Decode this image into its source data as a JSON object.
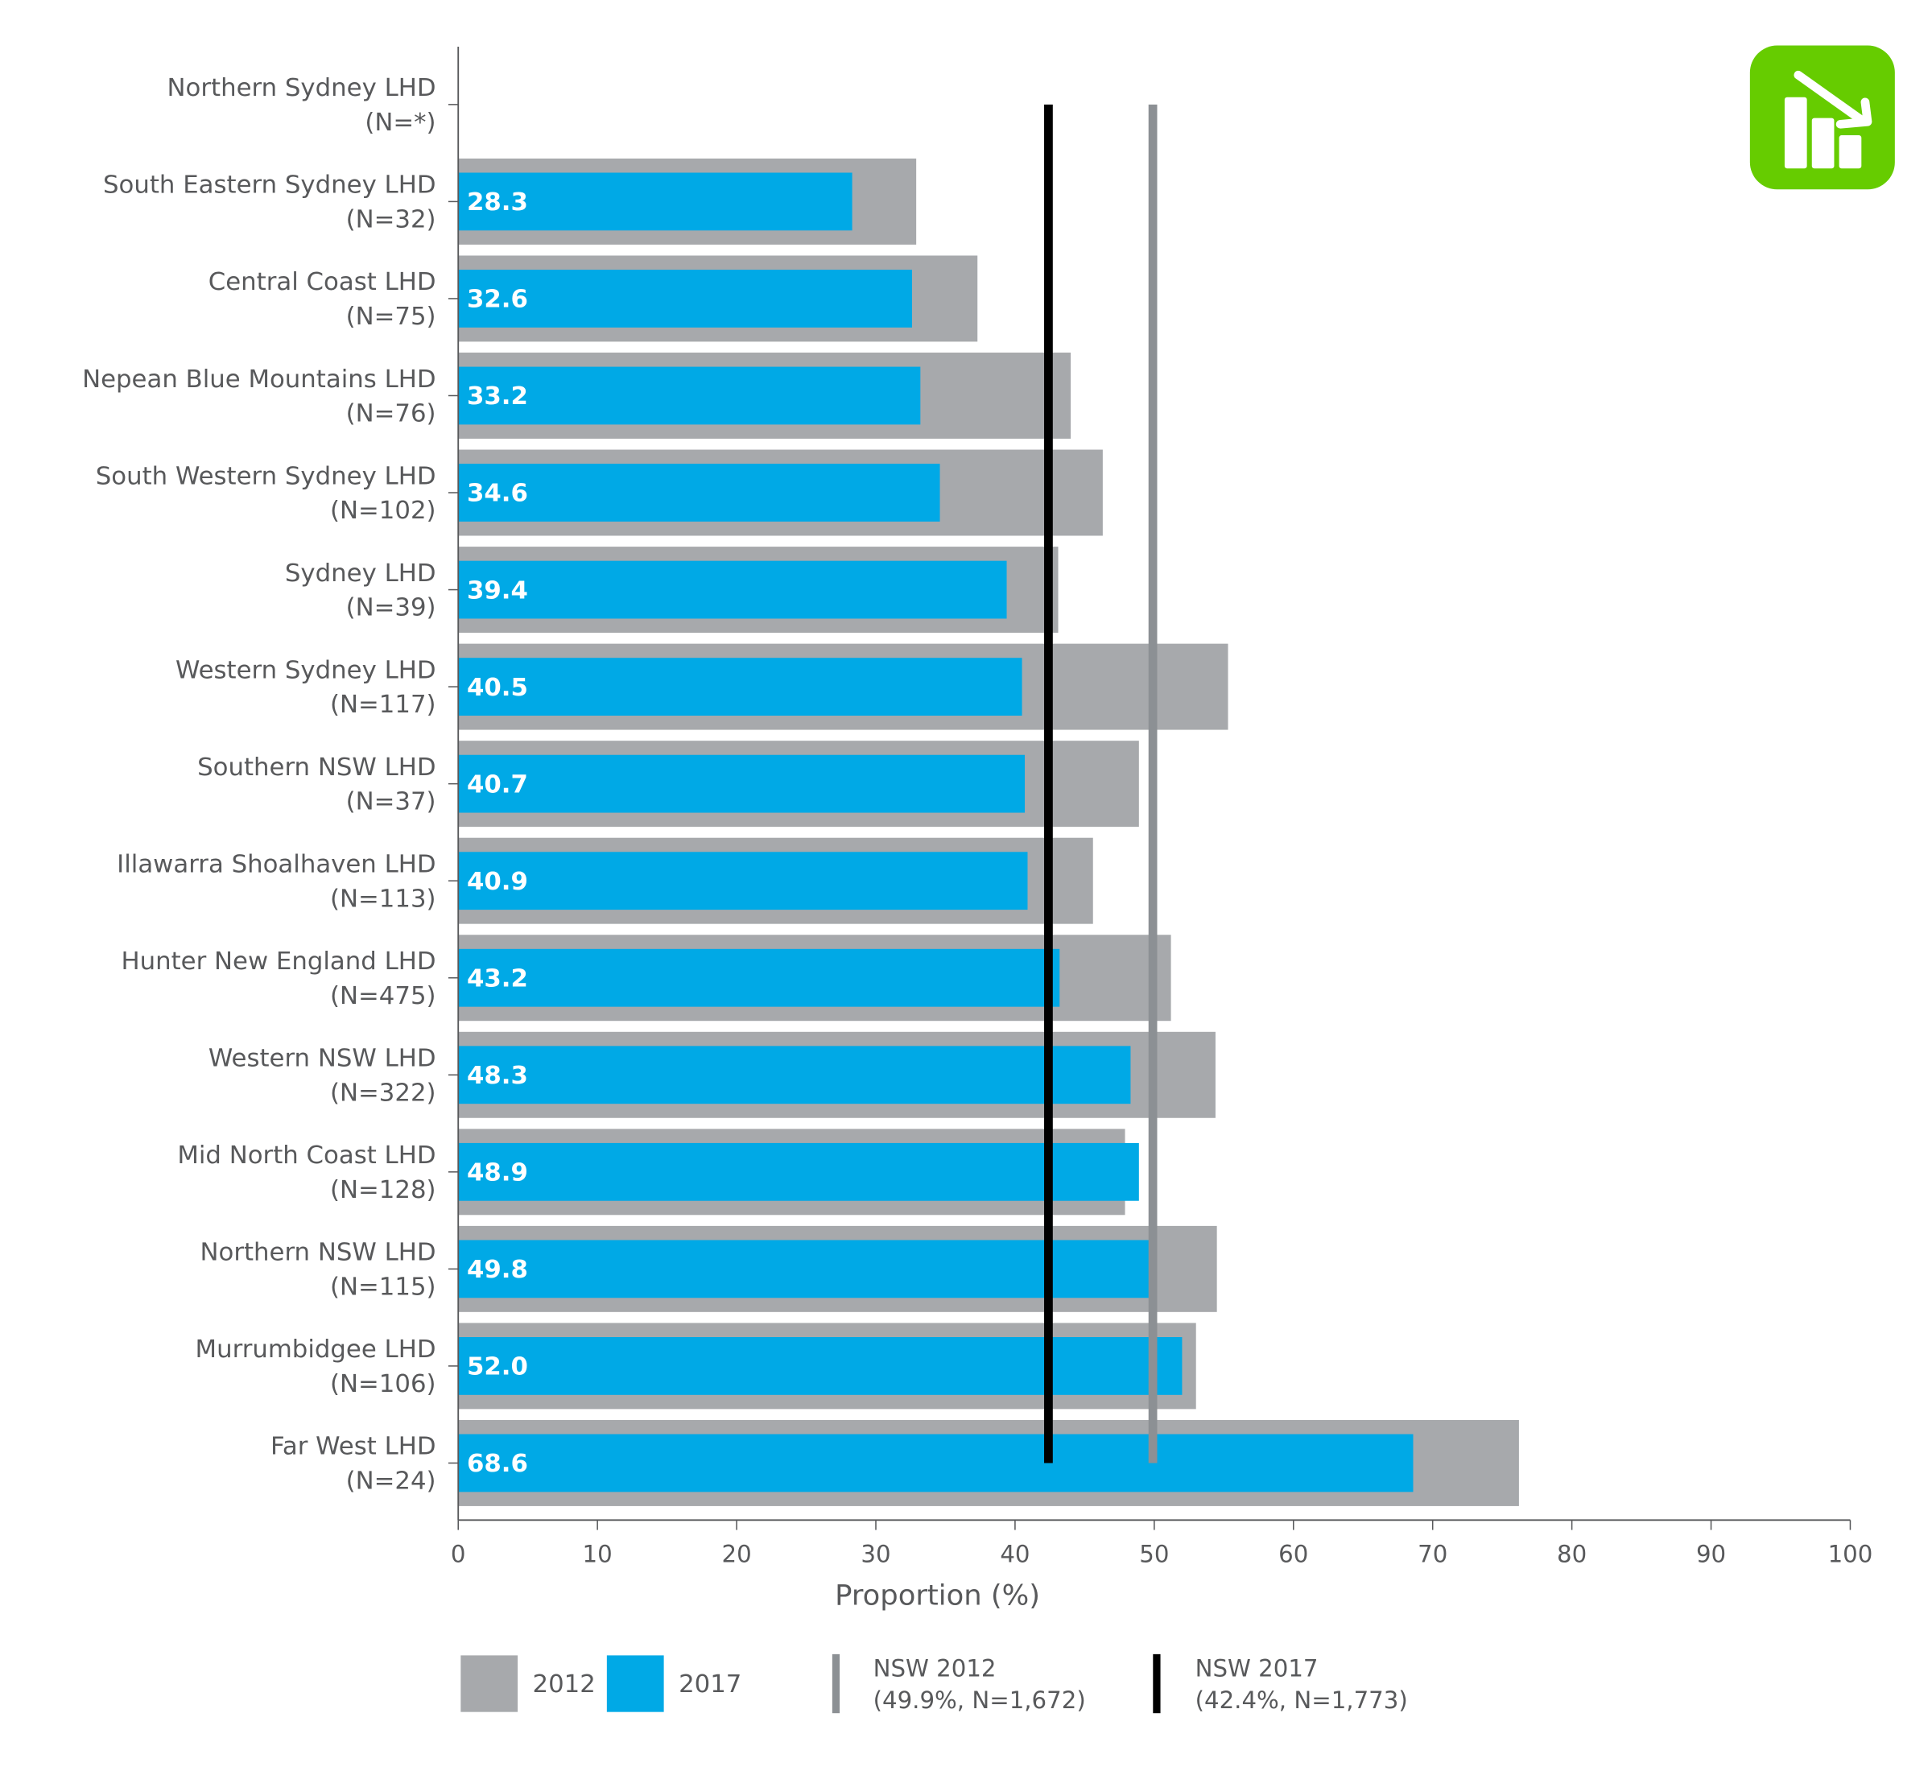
{
  "chart_data": {
    "type": "bar",
    "orientation": "horizontal",
    "xlabel": "Proportion (%)",
    "xlim": [
      0,
      100
    ],
    "xticks": [
      0,
      10,
      20,
      30,
      40,
      50,
      60,
      70,
      80,
      90,
      100
    ],
    "grid": false,
    "categories": [
      [
        "Northern Sydney LHD",
        "(N=*)"
      ],
      [
        "South Eastern Sydney LHD",
        "(N=32)"
      ],
      [
        "Central Coast LHD",
        "(N=75)"
      ],
      [
        "Nepean Blue Mountains LHD",
        "(N=76)"
      ],
      [
        "South Western Sydney LHD",
        "(N=102)"
      ],
      [
        "Sydney LHD",
        "(N=39)"
      ],
      [
        "Western Sydney LHD",
        "(N=117)"
      ],
      [
        "Southern NSW LHD",
        "(N=37)"
      ],
      [
        "Illawarra Shoalhaven LHD",
        "(N=113)"
      ],
      [
        "Hunter New England LHD",
        "(N=475)"
      ],
      [
        "Western NSW LHD",
        "(N=322)"
      ],
      [
        "Mid North Coast LHD",
        "(N=128)"
      ],
      [
        "Northern NSW LHD",
        "(N=115)"
      ],
      [
        "Murrumbidgee LHD",
        "(N=106)"
      ],
      [
        "Far West LHD",
        "(N=24)"
      ]
    ],
    "series": [
      {
        "name": "2012",
        "color": "#a7a9ac",
        "values": [
          null,
          32.9,
          37.3,
          44.0,
          46.3,
          43.1,
          55.3,
          48.9,
          45.6,
          51.2,
          54.4,
          47.9,
          54.5,
          53.0,
          76.2
        ]
      },
      {
        "name": "2017",
        "color": "#00a9e6",
        "values": [
          null,
          28.3,
          32.6,
          33.2,
          34.6,
          39.4,
          40.5,
          40.7,
          40.9,
          43.2,
          48.3,
          48.9,
          49.8,
          52.0,
          68.6
        ],
        "labels": [
          "",
          "28.3",
          "32.6",
          "33.2",
          "34.6",
          "39.4",
          "40.5",
          "40.7",
          "40.9",
          "43.2",
          "48.3",
          "48.9",
          "49.8",
          "52.0",
          "68.6"
        ]
      }
    ],
    "reference_lines": [
      {
        "name": "NSW 2012",
        "detail": "(49.9%, N=1,672)",
        "value": 49.9,
        "color": "#8c9094"
      },
      {
        "name": "NSW 2017",
        "detail": "(42.4%, N=1,773)",
        "value": 42.4,
        "color": "#000000"
      }
    ],
    "legend_placement": "bottom"
  },
  "icon": {
    "name": "decreasing-trend-chart-icon",
    "color": "#66cc00"
  }
}
